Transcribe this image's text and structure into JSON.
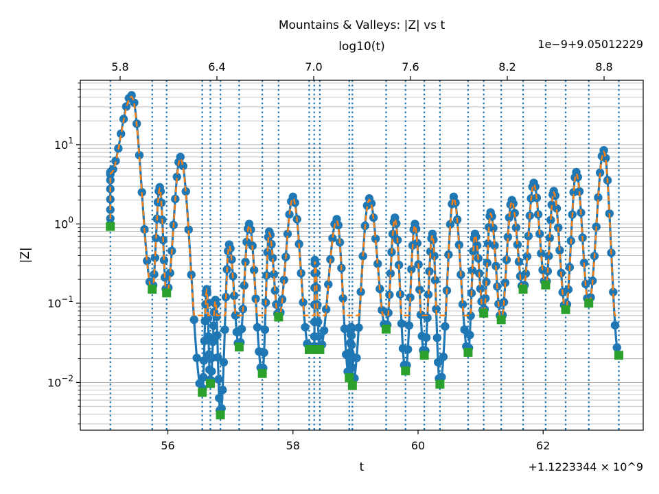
{
  "chart_data": {
    "type": "line",
    "title": "Mountains & Valleys: |Z| vs t",
    "xlabel": "t",
    "ylabel": "|Z|",
    "secondary_xlabel": "log10(t)",
    "x_offset_label": "+1.1223344 × 10^9",
    "secondary_offset_label": "1e−9+9.05012229",
    "x_ticks": [
      56,
      58,
      60,
      62
    ],
    "secondary_ticks": [
      "5.8",
      "6.4",
      "7.0",
      "7.6",
      "8.2",
      "8.8"
    ],
    "y_ticks": [
      "10^-2",
      "10^-1",
      "10^0",
      "10^1"
    ],
    "xlim": [
      54.6,
      63.6
    ],
    "ylim": [
      0.0025,
      65
    ],
    "y_scale": "log",
    "grid": "horizontal (major and minor)",
    "colors": {
      "magnitude": "#1f77b4",
      "smooth": "#ff7f0e",
      "zeros": "#2ca02c",
      "zero_lines": "#1f77b4"
    },
    "peaks": [
      {
        "t": 55.08,
        "z": 4.5
      },
      {
        "t": 55.42,
        "z": 42
      },
      {
        "t": 55.87,
        "z": 2.9
      },
      {
        "t": 56.2,
        "z": 7.0
      },
      {
        "t": 56.62,
        "z": 0.15
      },
      {
        "t": 56.76,
        "z": 0.11
      },
      {
        "t": 56.98,
        "z": 0.55
      },
      {
        "t": 57.3,
        "z": 1.0
      },
      {
        "t": 57.62,
        "z": 0.8
      },
      {
        "t": 58.0,
        "z": 2.2
      },
      {
        "t": 58.35,
        "z": 0.35
      },
      {
        "t": 58.7,
        "z": 1.15
      },
      {
        "t": 58.93,
        "z": 0.05
      },
      {
        "t": 59.22,
        "z": 2.1
      },
      {
        "t": 59.63,
        "z": 1.2
      },
      {
        "t": 59.95,
        "z": 1.0
      },
      {
        "t": 60.23,
        "z": 0.75
      },
      {
        "t": 60.57,
        "z": 2.2
      },
      {
        "t": 60.91,
        "z": 0.75
      },
      {
        "t": 61.16,
        "z": 1.4
      },
      {
        "t": 61.5,
        "z": 2.0
      },
      {
        "t": 61.85,
        "z": 3.3
      },
      {
        "t": 62.17,
        "z": 2.6
      },
      {
        "t": 62.53,
        "z": 4.5
      },
      {
        "t": 62.97,
        "z": 8.5
      }
    ],
    "zeros": [
      {
        "t": 55.08,
        "z": 0.93
      },
      {
        "t": 55.75,
        "z": 0.15
      },
      {
        "t": 55.98,
        "z": 0.135
      },
      {
        "t": 56.55,
        "z": 0.0075
      },
      {
        "t": 56.68,
        "z": 0.0097
      },
      {
        "t": 56.84,
        "z": 0.0039
      },
      {
        "t": 57.14,
        "z": 0.028
      },
      {
        "t": 57.51,
        "z": 0.013
      },
      {
        "t": 57.77,
        "z": 0.067
      },
      {
        "t": 58.26,
        "z": 0.026
      },
      {
        "t": 58.34,
        "z": 0.026
      },
      {
        "t": 58.43,
        "z": 0.026
      },
      {
        "t": 58.9,
        "z": 0.0115
      },
      {
        "t": 58.95,
        "z": 0.0092
      },
      {
        "t": 59.49,
        "z": 0.047
      },
      {
        "t": 59.8,
        "z": 0.014
      },
      {
        "t": 60.1,
        "z": 0.022
      },
      {
        "t": 60.35,
        "z": 0.0095
      },
      {
        "t": 60.8,
        "z": 0.024
      },
      {
        "t": 61.05,
        "z": 0.075
      },
      {
        "t": 61.33,
        "z": 0.062
      },
      {
        "t": 61.68,
        "z": 0.15
      },
      {
        "t": 62.04,
        "z": 0.17
      },
      {
        "t": 62.36,
        "z": 0.083
      },
      {
        "t": 62.73,
        "z": 0.1
      },
      {
        "t": 63.21,
        "z": 0.022
      }
    ]
  }
}
